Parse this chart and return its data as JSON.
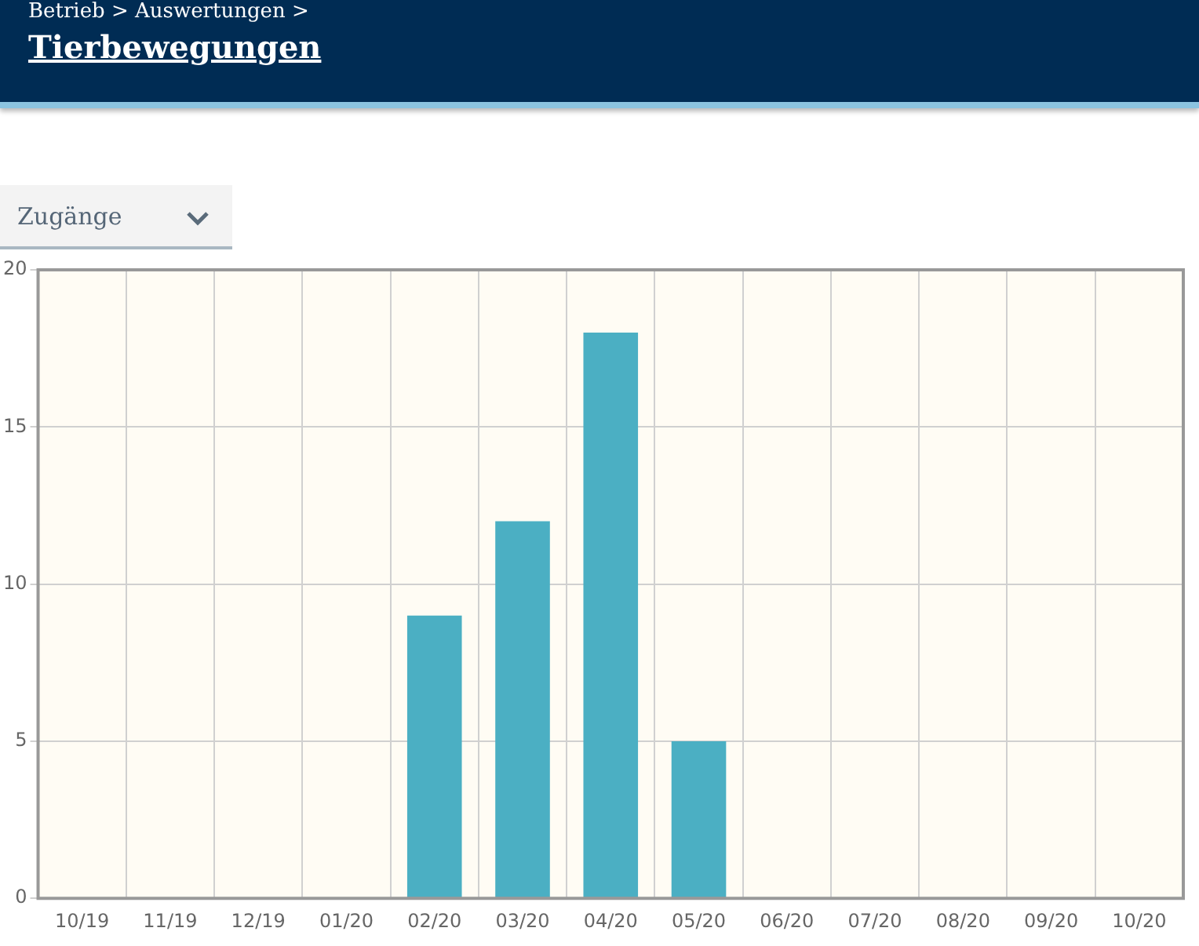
{
  "chart_data": {
    "type": "bar",
    "title": "Tierbewegungen",
    "annotations": [
      "Betrieb > Auswertungen >",
      "Zugänge"
    ],
    "categories": [
      "10/19",
      "11/19",
      "12/19",
      "01/20",
      "02/20",
      "03/20",
      "04/20",
      "05/20",
      "06/20",
      "07/20",
      "08/20",
      "09/20",
      "10/20"
    ],
    "values": [
      0,
      0,
      0,
      0,
      9,
      12,
      18,
      5,
      0,
      0,
      0,
      0,
      0
    ],
    "color": "#4bafc3",
    "ylim": [
      0,
      20
    ],
    "yticks": [
      0,
      5,
      10,
      15,
      20
    ],
    "grid": true,
    "legend": false
  }
}
